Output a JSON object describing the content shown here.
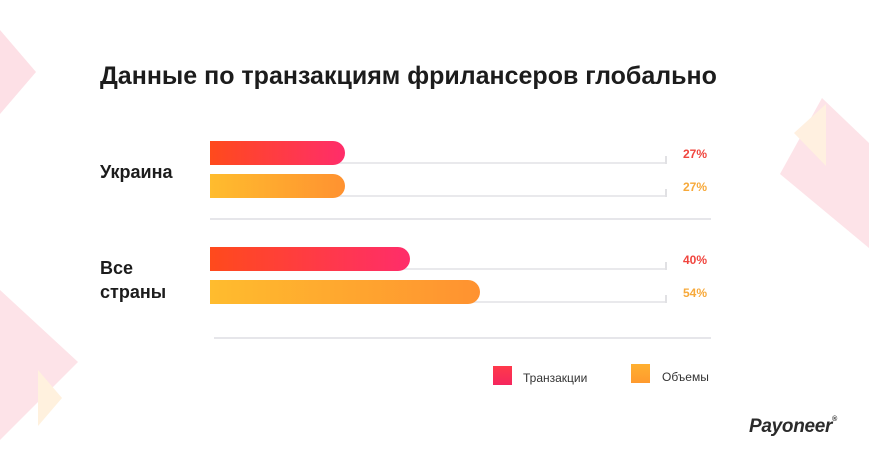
{
  "title": "Данные по транзакциям фрилансеров глобально",
  "chart_data": {
    "type": "bar",
    "orientation": "horizontal",
    "categories": [
      "Украина",
      "Все страны"
    ],
    "category_lines": [
      [
        "Украина"
      ],
      [
        "Все",
        "страны"
      ]
    ],
    "series": [
      {
        "name": "Транзакции",
        "values": [
          27,
          40
        ],
        "labels": [
          "27%",
          "40%"
        ],
        "color": "#ff3a4a"
      },
      {
        "name": "Объемы",
        "values": [
          27,
          54
        ],
        "labels": [
          "27%",
          "54%"
        ],
        "color": "#ffa630"
      }
    ],
    "xlim": [
      0,
      100
    ],
    "unit": "%",
    "legend_position": "bottom-right"
  },
  "brand": {
    "logo_text": "Payoneer",
    "trademark": "®"
  }
}
